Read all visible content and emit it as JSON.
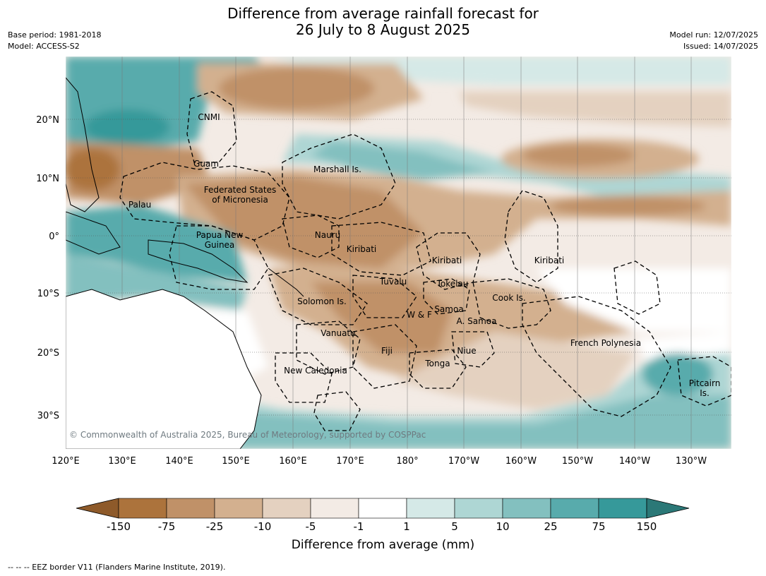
{
  "header": {
    "title_line1": "Difference from average rainfall forecast for",
    "title_line2": "26 July to 8 August 2025",
    "base_period": "Base period: 1981-2018",
    "model": "Model: ACCESS-S2",
    "model_run": "Model run: 12/07/2025",
    "issued": "Issued: 14/07/2025"
  },
  "axes": {
    "lon_ticks": [
      "120°E",
      "130°E",
      "140°E",
      "150°E",
      "160°E",
      "170°E",
      "180°",
      "170°W",
      "160°W",
      "150°W",
      "140°W",
      "130°W"
    ],
    "lat_ticks": [
      "20°N",
      "10°N",
      "0°",
      "10°S",
      "20°S",
      "30°S"
    ]
  },
  "regions": [
    {
      "id": "cnmi",
      "text": "CNMI"
    },
    {
      "id": "guam",
      "text": "Guam"
    },
    {
      "id": "marshall",
      "text": "Marshall Is."
    },
    {
      "id": "fsm1",
      "text": "Federated States"
    },
    {
      "id": "fsm2",
      "text": "of Micronesia"
    },
    {
      "id": "palau",
      "text": "Palau"
    },
    {
      "id": "png1",
      "text": "Papua New"
    },
    {
      "id": "png2",
      "text": "Guinea"
    },
    {
      "id": "nauru",
      "text": "Nauru"
    },
    {
      "id": "kiribati_w",
      "text": "Kiribati"
    },
    {
      "id": "kiribati_c",
      "text": "Kiribati"
    },
    {
      "id": "kiribati_e",
      "text": "Kiribati"
    },
    {
      "id": "tuvalu",
      "text": "Tuvalu"
    },
    {
      "id": "tokelau",
      "text": "Tokelau"
    },
    {
      "id": "solomon",
      "text": "Solomon Is."
    },
    {
      "id": "cook",
      "text": "Cook Is."
    },
    {
      "id": "wf",
      "text": "W & F"
    },
    {
      "id": "samoa",
      "text": "Samoa"
    },
    {
      "id": "asamoa",
      "text": "A. Samoa"
    },
    {
      "id": "vanuatu",
      "text": "Vanuatu"
    },
    {
      "id": "frenchpoly",
      "text": "French Polynesia"
    },
    {
      "id": "fiji",
      "text": "Fiji"
    },
    {
      "id": "niue",
      "text": "Niue"
    },
    {
      "id": "tonga",
      "text": "Tonga"
    },
    {
      "id": "newcal",
      "text": "New Caledonia"
    },
    {
      "id": "pitcairn1",
      "text": "Pitcairn"
    },
    {
      "id": "pitcairn2",
      "text": "Is."
    }
  ],
  "copyright": "© Commonwealth of Australia 2025, Bureau of Meteorology, supported by COSPPac",
  "colorbar": {
    "labels": [
      "-150",
      "-75",
      "-25",
      "-10",
      "-5",
      "-1",
      "1",
      "5",
      "10",
      "25",
      "75",
      "150"
    ],
    "colors": [
      "#8e5a2a",
      "#ac733c",
      "#c09168",
      "#d3b08f",
      "#e4d1c0",
      "#f3ebe5",
      "#ffffff",
      "#d5e9e7",
      "#aed6d4",
      "#83c0bf",
      "#58abac",
      "#36999a",
      "#2b7877"
    ],
    "title": "Difference from average (mm)"
  },
  "footnote": "--  --  -- EEZ border V11 (Flanders Marine Institute, 2019)."
}
